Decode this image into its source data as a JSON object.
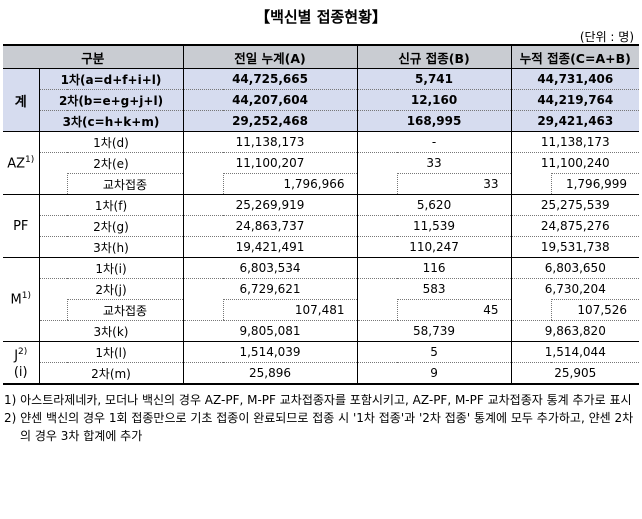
{
  "title": "【백신별 접종현황】",
  "unit": "(단위 : 명)",
  "headers": {
    "category": "구분",
    "cumulative_prev": "전일 누계(A)",
    "new": "신규 접종(B)",
    "cumulative": "누적 접종(C=A+B)"
  },
  "total": {
    "label": "계",
    "rows": [
      {
        "label": "1차(a=d+f+i+l)",
        "prev": "44,725,665",
        "new": "5,741",
        "cum": "44,731,406"
      },
      {
        "label": "2차(b=e+g+j+l)",
        "prev": "44,207,604",
        "new": "12,160",
        "cum": "44,219,764"
      },
      {
        "label": "3차(c=h+k+m)",
        "prev": "29,252,468",
        "new": "168,995",
        "cum": "29,421,463"
      }
    ]
  },
  "az": {
    "label": "AZ",
    "sup": "1)",
    "rows": [
      {
        "label": "1차(d)",
        "prev": "11,138,173",
        "new": "-",
        "cum": "11,138,173"
      },
      {
        "label": "2차(e)",
        "prev": "11,100,207",
        "new": "33",
        "cum": "11,100,240"
      }
    ],
    "cross": {
      "label": "교차접종",
      "prev": "1,796,966",
      "new": "33",
      "cum": "1,796,999"
    }
  },
  "pf": {
    "label": "PF",
    "rows": [
      {
        "label": "1차(f)",
        "prev": "25,269,919",
        "new": "5,620",
        "cum": "25,275,539"
      },
      {
        "label": "2차(g)",
        "prev": "24,863,737",
        "new": "11,539",
        "cum": "24,875,276"
      },
      {
        "label": "3차(h)",
        "prev": "19,421,491",
        "new": "110,247",
        "cum": "19,531,738"
      }
    ]
  },
  "m": {
    "label": "M",
    "sup": "1)",
    "rows": [
      {
        "label": "1차(i)",
        "prev": "6,803,534",
        "new": "116",
        "cum": "6,803,650"
      },
      {
        "label": "2차(j)",
        "prev": "6,729,621",
        "new": "583",
        "cum": "6,730,204"
      }
    ],
    "cross": {
      "label": "교차접종",
      "prev": "107,481",
      "new": "45",
      "cum": "107,526"
    },
    "row3": {
      "label": "3차(k)",
      "prev": "9,805,081",
      "new": "58,739",
      "cum": "9,863,820"
    }
  },
  "j": {
    "label": "J",
    "sup": "2)",
    "sub": "(i)",
    "rows": [
      {
        "label": "1차(l)",
        "prev": "1,514,039",
        "new": "5",
        "cum": "1,514,044"
      },
      {
        "label": "2차(m)",
        "prev": "25,896",
        "new": "9",
        "cum": "25,905"
      }
    ]
  },
  "notes": [
    "1) 아스트라제네카, 모더나 백신의 경우 AZ-PF, M-PF 교차접종자를 포함시키고, AZ-PF, M-PF 교차접종자 통계 추가로 표시",
    "2) 얀센 백신의 경우 1회 접종만으로 기초 접종이 완료되므로 접종 시 '1차 접종'과 '2차 접종' 통계에 모두 추가하고, 얀센 2차의 경우 3차 합계에 추가"
  ]
}
